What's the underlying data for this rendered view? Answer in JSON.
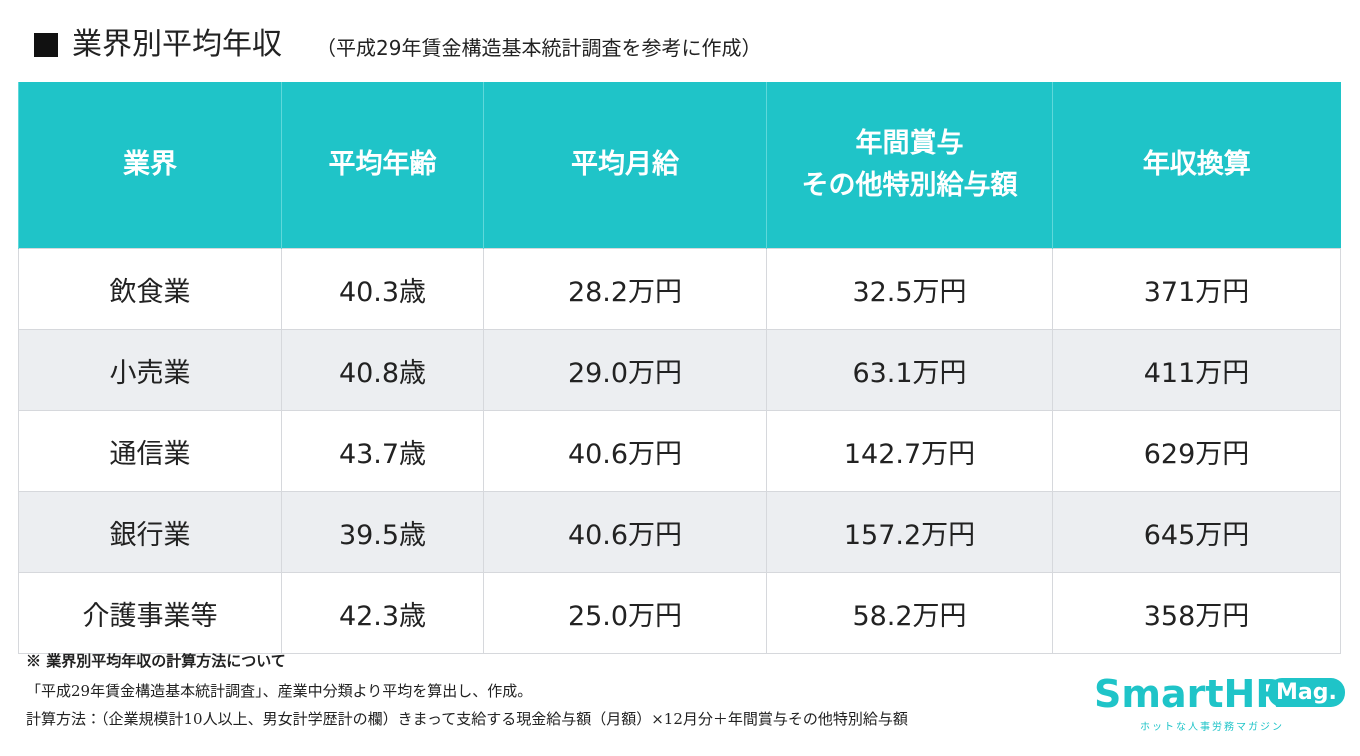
{
  "header": {
    "title": "業界別平均年収",
    "subtitle": "（平成29年賃金構造基本統計調査を参考に作成）"
  },
  "table": {
    "columns": [
      [
        "業界"
      ],
      [
        "平均年齢"
      ],
      [
        "平均月給"
      ],
      [
        "年間賞与",
        "その他特別給与額"
      ],
      [
        "年収換算"
      ]
    ],
    "rows": [
      [
        "飲食業",
        "40.3歳",
        "28.2万円",
        "32.5万円",
        "371万円"
      ],
      [
        "小売業",
        "40.8歳",
        "29.0万円",
        "63.1万円",
        "411万円"
      ],
      [
        "通信業",
        "43.7歳",
        "40.6万円",
        "142.7万円",
        "629万円"
      ],
      [
        "銀行業",
        "39.5歳",
        "40.6万円",
        "157.2万円",
        "645万円"
      ],
      [
        "介護事業等",
        "42.3歳",
        "25.0万円",
        "58.2万円",
        "358万円"
      ]
    ]
  },
  "notes": [
    "※ 業界別平均年収の計算方法について",
    "「平成29年賃金構造基本統計調査」、産業中分類より平均を算出し、作成。",
    "計算方法：（企業規模計10人以上、男女計学歴計の欄）きまって支給する現金給与額（月額）×12月分＋年間賞与その他特別給与額"
  ],
  "logo": {
    "brand": "SmartHR",
    "badge": "Mag.",
    "tagline": "ホットな人事労務マガジン"
  }
}
